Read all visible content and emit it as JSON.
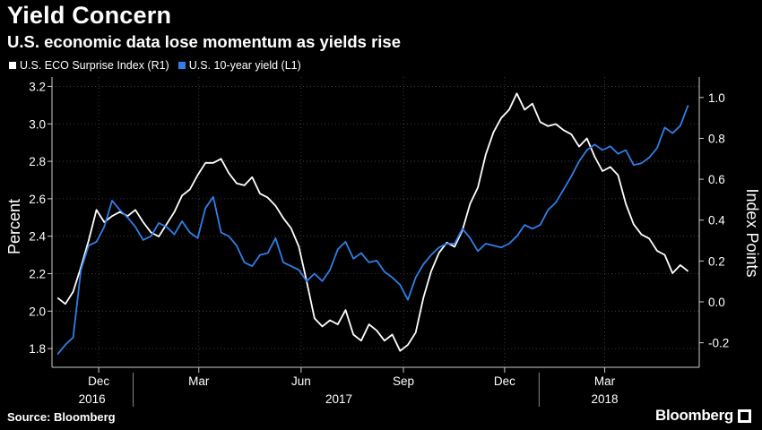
{
  "header": {
    "title": "Yield Concern",
    "subtitle": "U.S. economic data lose momentum as yields rise"
  },
  "footer": {
    "source": "Source: Bloomberg",
    "brand": "Bloomberg"
  },
  "colors": {
    "background": "#000000",
    "eco_series": "#ffffff",
    "yield_series": "#2f7fe8",
    "grid": "#555555"
  },
  "chart_data": {
    "type": "line",
    "title": "Yield Concern",
    "subtitle": "U.S. economic data lose momentum as yields rise",
    "x_tick_labels": [
      {
        "label": "Dec",
        "date": "2016-12-01"
      },
      {
        "label": "Mar",
        "date": "2017-03-01"
      },
      {
        "label": "Jun",
        "date": "2017-06-01"
      },
      {
        "label": "Sep",
        "date": "2017-09-01"
      },
      {
        "label": "Dec",
        "date": "2017-12-01"
      },
      {
        "label": "Mar",
        "date": "2018-03-01"
      }
    ],
    "year_labels": [
      {
        "label": "2016",
        "date": "2016-11-25"
      },
      {
        "label": "2017",
        "date": "2017-07-05"
      },
      {
        "label": "2018",
        "date": "2018-03-01"
      }
    ],
    "xlim": [
      "2016-10-20",
      "2018-05-25"
    ],
    "grid": true,
    "legend_position": "top-left",
    "left_axis": {
      "label": "Percent",
      "ylim": [
        1.7,
        3.25
      ],
      "ticks": [
        "1.8",
        "2.0",
        "2.2",
        "2.4",
        "2.6",
        "2.8",
        "3.0",
        "3.2"
      ]
    },
    "right_axis": {
      "label": "Index Points",
      "ylim": [
        -0.32,
        1.1
      ],
      "ticks": [
        "-0.2",
        "0.0",
        "0.2",
        "0.4",
        "0.6",
        "0.8",
        "1.0"
      ]
    },
    "series": [
      {
        "name": "U.S. ECO Surprise Index (R1)",
        "axis": "right",
        "color": "#ffffff",
        "x": [
          "2016-10-25",
          "2016-11-01",
          "2016-11-08",
          "2016-11-15",
          "2016-11-22",
          "2016-11-29",
          "2016-12-06",
          "2016-12-13",
          "2016-12-20",
          "2016-12-27",
          "2017-01-03",
          "2017-01-10",
          "2017-01-17",
          "2017-01-24",
          "2017-01-31",
          "2017-02-07",
          "2017-02-14",
          "2017-02-21",
          "2017-02-28",
          "2017-03-07",
          "2017-03-14",
          "2017-03-21",
          "2017-03-28",
          "2017-04-04",
          "2017-04-11",
          "2017-04-18",
          "2017-04-25",
          "2017-05-02",
          "2017-05-09",
          "2017-05-16",
          "2017-05-23",
          "2017-05-30",
          "2017-06-06",
          "2017-06-13",
          "2017-06-20",
          "2017-06-27",
          "2017-07-04",
          "2017-07-11",
          "2017-07-18",
          "2017-07-25",
          "2017-08-01",
          "2017-08-08",
          "2017-08-15",
          "2017-08-22",
          "2017-08-29",
          "2017-09-05",
          "2017-09-12",
          "2017-09-19",
          "2017-09-26",
          "2017-10-03",
          "2017-10-10",
          "2017-10-17",
          "2017-10-24",
          "2017-10-31",
          "2017-11-07",
          "2017-11-14",
          "2017-11-21",
          "2017-11-28",
          "2017-12-05",
          "2017-12-12",
          "2017-12-19",
          "2017-12-26",
          "2018-01-02",
          "2018-01-09",
          "2018-01-16",
          "2018-01-23",
          "2018-01-30",
          "2018-02-06",
          "2018-02-13",
          "2018-02-20",
          "2018-02-27",
          "2018-03-06",
          "2018-03-13",
          "2018-03-20",
          "2018-03-27",
          "2018-04-03",
          "2018-04-10",
          "2018-04-17",
          "2018-04-24",
          "2018-05-01",
          "2018-05-08",
          "2018-05-15"
        ],
        "values": [
          0.02,
          -0.01,
          0.05,
          0.17,
          0.3,
          0.45,
          0.39,
          0.42,
          0.44,
          0.42,
          0.45,
          0.39,
          0.34,
          0.32,
          0.38,
          0.44,
          0.52,
          0.55,
          0.62,
          0.68,
          0.68,
          0.7,
          0.63,
          0.58,
          0.57,
          0.61,
          0.53,
          0.51,
          0.47,
          0.41,
          0.36,
          0.27,
          0.1,
          -0.08,
          -0.12,
          -0.09,
          -0.11,
          -0.04,
          -0.16,
          -0.19,
          -0.11,
          -0.14,
          -0.19,
          -0.16,
          -0.24,
          -0.21,
          -0.15,
          0.02,
          0.15,
          0.24,
          0.29,
          0.27,
          0.35,
          0.48,
          0.56,
          0.72,
          0.83,
          0.9,
          0.94,
          1.02,
          0.94,
          0.97,
          0.88,
          0.86,
          0.87,
          0.84,
          0.82,
          0.76,
          0.8,
          0.71,
          0.64,
          0.66,
          0.62,
          0.48,
          0.38,
          0.33,
          0.31,
          0.25,
          0.23,
          0.14,
          0.18,
          0.15
        ]
      },
      {
        "name": "U.S. 10-year yield (L1)",
        "axis": "left",
        "color": "#2f7fe8",
        "x": [
          "2016-10-25",
          "2016-11-01",
          "2016-11-08",
          "2016-11-15",
          "2016-11-22",
          "2016-11-29",
          "2016-12-06",
          "2016-12-13",
          "2016-12-20",
          "2016-12-27",
          "2017-01-03",
          "2017-01-10",
          "2017-01-17",
          "2017-01-24",
          "2017-01-31",
          "2017-02-07",
          "2017-02-14",
          "2017-02-21",
          "2017-02-28",
          "2017-03-07",
          "2017-03-14",
          "2017-03-21",
          "2017-03-28",
          "2017-04-04",
          "2017-04-11",
          "2017-04-18",
          "2017-04-25",
          "2017-05-02",
          "2017-05-09",
          "2017-05-16",
          "2017-05-23",
          "2017-05-30",
          "2017-06-06",
          "2017-06-13",
          "2017-06-20",
          "2017-06-27",
          "2017-07-04",
          "2017-07-11",
          "2017-07-18",
          "2017-07-25",
          "2017-08-01",
          "2017-08-08",
          "2017-08-15",
          "2017-08-22",
          "2017-08-29",
          "2017-09-05",
          "2017-09-12",
          "2017-09-19",
          "2017-09-26",
          "2017-10-03",
          "2017-10-10",
          "2017-10-17",
          "2017-10-24",
          "2017-10-31",
          "2017-11-07",
          "2017-11-14",
          "2017-11-21",
          "2017-11-28",
          "2017-12-05",
          "2017-12-12",
          "2017-12-19",
          "2017-12-26",
          "2018-01-02",
          "2018-01-09",
          "2018-01-16",
          "2018-01-23",
          "2018-01-30",
          "2018-02-06",
          "2018-02-13",
          "2018-02-20",
          "2018-02-27",
          "2018-03-06",
          "2018-03-13",
          "2018-03-20",
          "2018-03-27",
          "2018-04-03",
          "2018-04-10",
          "2018-04-17",
          "2018-04-24",
          "2018-05-01",
          "2018-05-08",
          "2018-05-15"
        ],
        "values": [
          1.77,
          1.82,
          1.86,
          2.22,
          2.35,
          2.37,
          2.45,
          2.59,
          2.54,
          2.5,
          2.45,
          2.38,
          2.4,
          2.47,
          2.45,
          2.41,
          2.48,
          2.42,
          2.39,
          2.55,
          2.61,
          2.42,
          2.4,
          2.35,
          2.26,
          2.24,
          2.3,
          2.31,
          2.39,
          2.26,
          2.24,
          2.22,
          2.16,
          2.2,
          2.16,
          2.22,
          2.33,
          2.37,
          2.28,
          2.31,
          2.26,
          2.27,
          2.21,
          2.18,
          2.14,
          2.06,
          2.18,
          2.25,
          2.3,
          2.34,
          2.36,
          2.36,
          2.44,
          2.39,
          2.32,
          2.36,
          2.35,
          2.34,
          2.36,
          2.4,
          2.46,
          2.44,
          2.46,
          2.54,
          2.58,
          2.65,
          2.72,
          2.8,
          2.86,
          2.89,
          2.86,
          2.88,
          2.84,
          2.86,
          2.78,
          2.79,
          2.82,
          2.87,
          2.98,
          2.95,
          2.99,
          3.1
        ]
      }
    ]
  }
}
